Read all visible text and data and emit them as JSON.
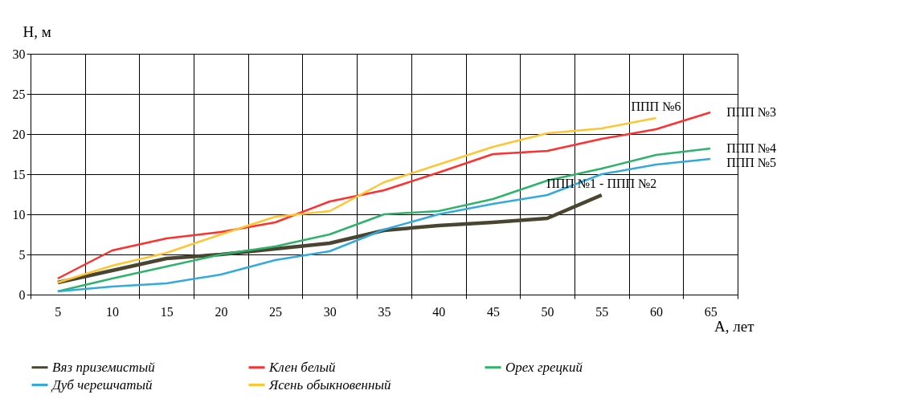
{
  "chart_data": {
    "type": "line",
    "xlabel": "А, лет",
    "ylabel": "Н, м",
    "categories": [
      "5",
      "10",
      "15",
      "20",
      "25",
      "30",
      "35",
      "40",
      "45",
      "50",
      "55",
      "60",
      "65"
    ],
    "series": [
      {
        "name": "Вяз приземистый",
        "color": "#4a4530",
        "values": [
          1.5,
          3.0,
          4.5,
          5.0,
          5.7,
          6.4,
          8.0,
          8.6,
          9.0,
          9.5,
          12.4,
          null,
          null
        ]
      },
      {
        "name": "Клен белый",
        "color": "#ff3030",
        "values": [
          2.0,
          5.5,
          7.0,
          7.8,
          9.0,
          11.6,
          13.0,
          15.2,
          17.5,
          17.9,
          19.4,
          20.6,
          22.7
        ]
      },
      {
        "name": "Орех грецкий",
        "color": "#2db36b",
        "values": [
          0.4,
          2.0,
          3.5,
          5.0,
          6.0,
          7.5,
          10.0,
          10.4,
          11.9,
          14.2,
          15.7,
          17.4,
          18.2
        ]
      },
      {
        "name": "Дуб черешчатый",
        "color": "#33aadd",
        "values": [
          0.4,
          1.0,
          1.4,
          2.5,
          4.3,
          5.4,
          8.1,
          10.0,
          11.3,
          12.4,
          15.0,
          16.2,
          16.9
        ]
      },
      {
        "name": "Ясень обыкновенный",
        "color": "#ffc533",
        "values": [
          1.5,
          3.6,
          5.2,
          7.5,
          9.7,
          10.4,
          14.0,
          16.2,
          18.4,
          20.1,
          20.7,
          22.0,
          null
        ]
      }
    ],
    "annotations": [
      {
        "text": "ППП №6",
        "x": "60",
        "y": 22.0
      },
      {
        "text": "ППП №3",
        "x": "65",
        "y": 22.7
      },
      {
        "text": "ППП №4",
        "x": "65",
        "y": 18.2
      },
      {
        "text": "ППП №5",
        "x": "65",
        "y": 16.9
      },
      {
        "text": "ППП №1 - ППП №2",
        "x": "55",
        "y": 12.4
      }
    ],
    "ylim": [
      0,
      30
    ],
    "yticks": [
      0,
      5,
      10,
      15,
      20,
      25,
      30
    ],
    "grid": true,
    "legend": "bottom",
    "marker": "none",
    "line_style": "solid"
  }
}
